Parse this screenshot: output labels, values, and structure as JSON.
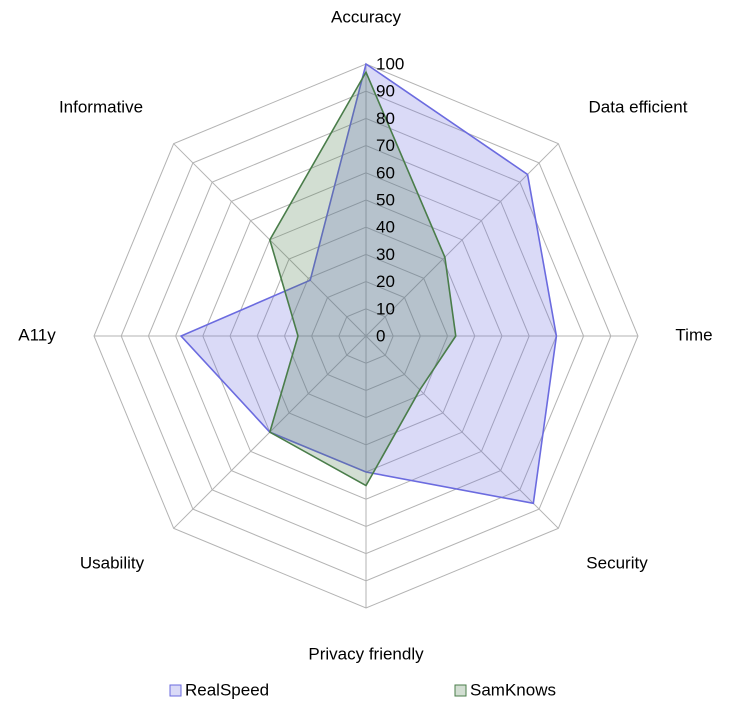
{
  "chart_data": {
    "type": "radar",
    "categories": [
      "Accuracy",
      "Data efficient",
      "Time",
      "Security",
      "Privacy friendly",
      "Usability",
      "A11y",
      "Informative"
    ],
    "series": [
      {
        "name": "RealSpeed",
        "color": "#6b6bdf",
        "values": [
          100,
          84,
          70,
          87,
          50,
          50,
          68,
          29
        ]
      },
      {
        "name": "SamKnows",
        "color": "#4a7d4a",
        "values": [
          97,
          41,
          33,
          28,
          55,
          50,
          25,
          50
        ]
      }
    ],
    "ylim": [
      0,
      100
    ],
    "yticks": [
      0,
      10,
      20,
      30,
      40,
      50,
      60,
      70,
      80,
      90,
      100
    ],
    "grid": true
  }
}
